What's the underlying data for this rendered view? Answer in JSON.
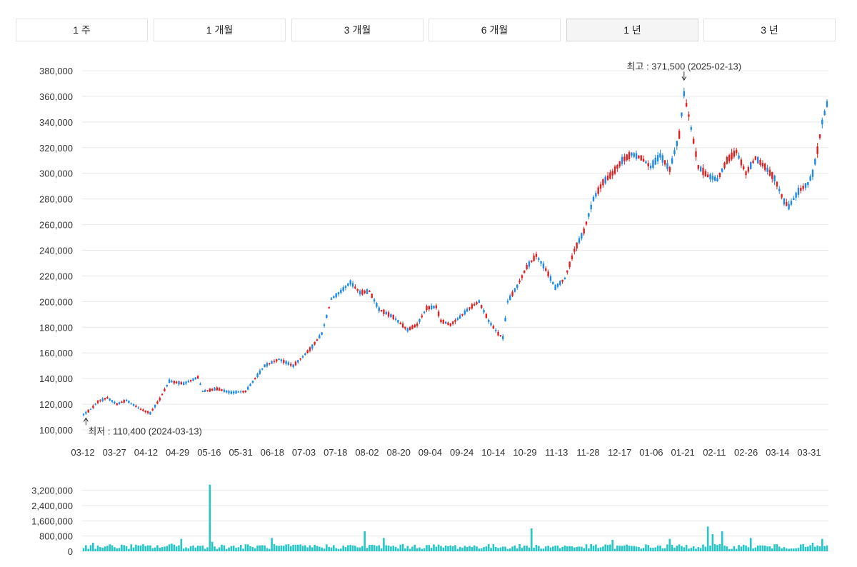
{
  "period_tabs": [
    {
      "label": "1 주",
      "active": false
    },
    {
      "label": "1 개월",
      "active": false
    },
    {
      "label": "3 개월",
      "active": false
    },
    {
      "label": "6 개월",
      "active": false
    },
    {
      "label": "1 년",
      "active": true
    },
    {
      "label": "3 년",
      "active": false
    }
  ],
  "colors": {
    "up": "#e02020",
    "down": "#1e88e5",
    "volume": "#26c6c6",
    "grid": "#e8e8e8"
  },
  "chart_data": [
    {
      "type": "candlestick",
      "ylim": [
        100000,
        380000
      ],
      "yticks": [
        {
          "value": 100000,
          "label": "100,000"
        },
        {
          "value": 120000,
          "label": "120,000"
        },
        {
          "value": 140000,
          "label": "140,000"
        },
        {
          "value": 160000,
          "label": "160,000"
        },
        {
          "value": 180000,
          "label": "180,000"
        },
        {
          "value": 200000,
          "label": "200,000"
        },
        {
          "value": 220000,
          "label": "220,000"
        },
        {
          "value": 240000,
          "label": "240,000"
        },
        {
          "value": 260000,
          "label": "260,000"
        },
        {
          "value": 280000,
          "label": "280,000"
        },
        {
          "value": 300000,
          "label": "300,000"
        },
        {
          "value": 320000,
          "label": "320,000"
        },
        {
          "value": 340000,
          "label": "340,000"
        },
        {
          "value": 360000,
          "label": "360,000"
        },
        {
          "value": 380000,
          "label": "380,000"
        }
      ],
      "xticks": [
        "03-12",
        "03-27",
        "04-12",
        "04-29",
        "05-16",
        "05-31",
        "06-18",
        "07-03",
        "07-18",
        "08-02",
        "08-20",
        "09-04",
        "09-24",
        "10-14",
        "10-29",
        "11-13",
        "11-28",
        "12-17",
        "01-06",
        "01-21",
        "02-11",
        "02-26",
        "03-14",
        "03-31"
      ],
      "trend": [
        [
          0,
          112000
        ],
        [
          3,
          116000
        ],
        [
          6,
          122000
        ],
        [
          10,
          125000
        ],
        [
          14,
          120000
        ],
        [
          18,
          123000
        ],
        [
          24,
          116000
        ],
        [
          28,
          113000
        ],
        [
          32,
          124000
        ],
        [
          36,
          138000
        ],
        [
          42,
          136000
        ],
        [
          48,
          141000
        ],
        [
          50,
          130000
        ],
        [
          56,
          132000
        ],
        [
          62,
          129000
        ],
        [
          68,
          130000
        ],
        [
          72,
          140000
        ],
        [
          76,
          150000
        ],
        [
          82,
          155000
        ],
        [
          88,
          150000
        ],
        [
          92,
          157000
        ],
        [
          96,
          165000
        ],
        [
          100,
          175000
        ],
        [
          104,
          202000
        ],
        [
          108,
          208000
        ],
        [
          112,
          215000
        ],
        [
          116,
          207000
        ],
        [
          120,
          208000
        ],
        [
          124,
          194000
        ],
        [
          130,
          188000
        ],
        [
          136,
          178000
        ],
        [
          140,
          182000
        ],
        [
          144,
          195000
        ],
        [
          148,
          196000
        ],
        [
          150,
          185000
        ],
        [
          154,
          182000
        ],
        [
          158,
          188000
        ],
        [
          162,
          195000
        ],
        [
          166,
          200000
        ],
        [
          170,
          185000
        ],
        [
          174,
          175000
        ],
        [
          176,
          172000
        ],
        [
          178,
          200000
        ],
        [
          182,
          212000
        ],
        [
          186,
          227000
        ],
        [
          190,
          236000
        ],
        [
          194,
          225000
        ],
        [
          198,
          211000
        ],
        [
          202,
          218000
        ],
        [
          206,
          240000
        ],
        [
          210,
          255000
        ],
        [
          214,
          280000
        ],
        [
          218,
          293000
        ],
        [
          222,
          300000
        ],
        [
          226,
          310000
        ],
        [
          230,
          315000
        ],
        [
          234,
          312000
        ],
        [
          238,
          305000
        ],
        [
          242,
          314000
        ],
        [
          246,
          303000
        ],
        [
          250,
          330000
        ],
        [
          252,
          362000
        ],
        [
          254,
          345000
        ],
        [
          256,
          325000
        ],
        [
          258,
          305000
        ],
        [
          262,
          298000
        ],
        [
          266,
          295000
        ],
        [
          270,
          310000
        ],
        [
          274,
          317000
        ],
        [
          278,
          300000
        ],
        [
          282,
          312000
        ],
        [
          286,
          305000
        ],
        [
          290,
          296000
        ],
        [
          294,
          278000
        ],
        [
          296,
          274000
        ],
        [
          300,
          286000
        ],
        [
          304,
          292000
        ],
        [
          306,
          300000
        ],
        [
          308,
          318000
        ],
        [
          310,
          340000
        ],
        [
          312,
          354000
        ]
      ],
      "volume": {
        "ylim": [
          0,
          3600000
        ],
        "yticks": [
          {
            "value": 0,
            "label": "0"
          },
          {
            "value": 800000,
            "label": "800,000"
          },
          {
            "value": 1600000,
            "label": "1,600,000"
          },
          {
            "value": 2400000,
            "label": "2,400,000"
          },
          {
            "value": 3200000,
            "label": "3,200,000"
          }
        ],
        "spikes": [
          [
            4,
            450000
          ],
          [
            6,
            300000
          ],
          [
            37,
            400000
          ],
          [
            38,
            350000
          ],
          [
            41,
            650000
          ],
          [
            53,
            3500000
          ],
          [
            54,
            500000
          ],
          [
            79,
            700000
          ],
          [
            118,
            1050000
          ],
          [
            126,
            700000
          ],
          [
            152,
            300000
          ],
          [
            188,
            1200000
          ],
          [
            222,
            600000
          ],
          [
            246,
            650000
          ],
          [
            262,
            1300000
          ],
          [
            264,
            900000
          ],
          [
            268,
            1050000
          ],
          [
            280,
            700000
          ],
          [
            306,
            450000
          ],
          [
            310,
            650000
          ]
        ]
      },
      "annotations": [
        {
          "text": "최고 : 371,500 (2025-02-13)",
          "index": 252,
          "value": 371500
        },
        {
          "text": "최저 : 110,400 (2024-03-13)",
          "index": 1,
          "value": 110400
        }
      ]
    }
  ]
}
